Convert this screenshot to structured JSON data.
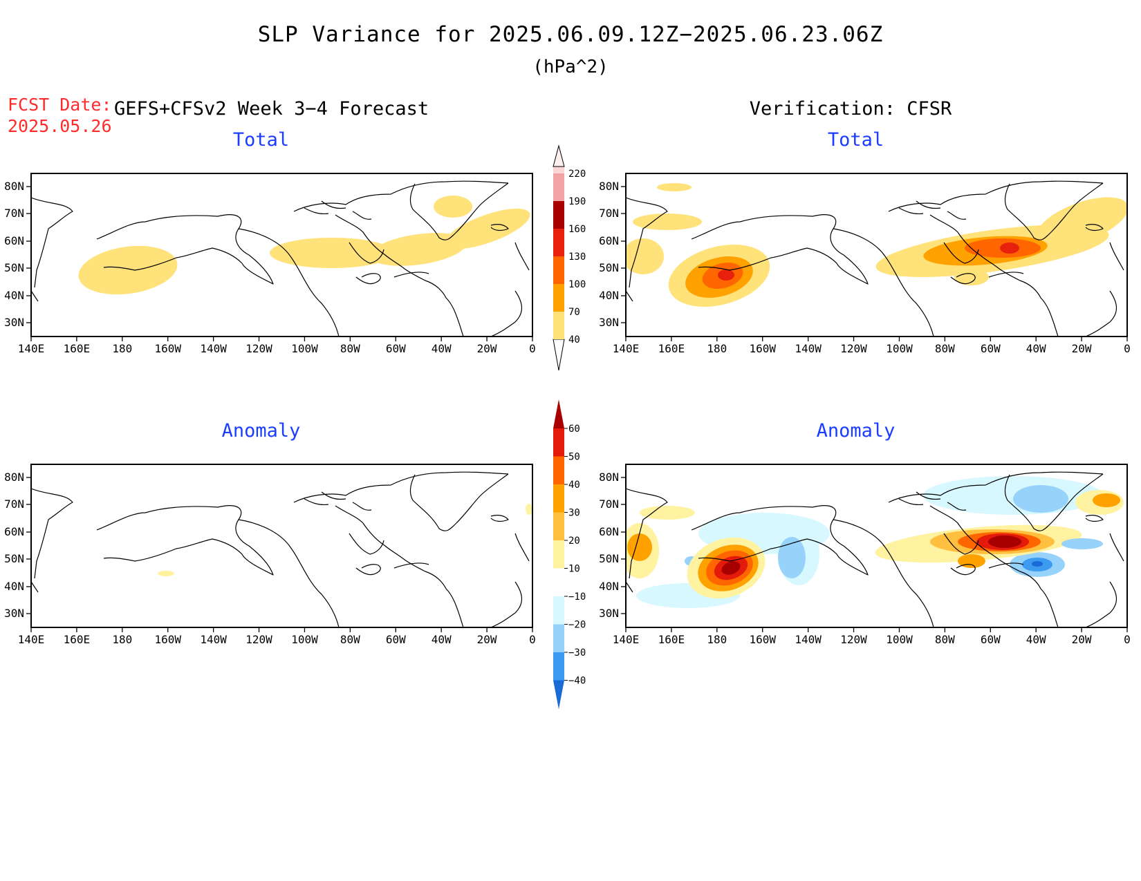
{
  "title": "SLP Variance for 2025.06.09.12Z−2025.06.23.06Z",
  "units": "(hPa^2)",
  "fcst_label": "FCST Date:",
  "fcst_date": "2025.05.26",
  "left_header": "GEFS+CFSv2 Week 3−4 Forecast",
  "right_header": "Verification: CFSR",
  "panel_titles": {
    "total": "Total",
    "anomaly": "Anomaly"
  },
  "lat_ticks": [
    "80N",
    "70N",
    "60N",
    "50N",
    "40N",
    "30N"
  ],
  "lon_ticks": [
    "140E",
    "160E",
    "180",
    "160W",
    "140W",
    "120W",
    "100W",
    "80W",
    "60W",
    "40W",
    "20W",
    "0"
  ],
  "colorbar_total": {
    "levels": [
      "40",
      "70",
      "100",
      "130",
      "160",
      "190",
      "220"
    ],
    "colors": [
      "#ffe27a",
      "#ffa200",
      "#ff6600",
      "#e8200e",
      "#a80000",
      "#f3a3a3",
      "#fbd6d6",
      "#fff0f0"
    ]
  },
  "colorbar_anomaly": {
    "levels": [
      "60",
      "50",
      "40",
      "30",
      "20",
      "10",
      "−10",
      "−20",
      "−30",
      "−40"
    ],
    "colors": [
      "#a80000",
      "#e41a0b",
      "#ff6600",
      "#ffa200",
      "#ffc040",
      "#fff2a0",
      "#ffffff",
      "#d8f8ff",
      "#96d2fa",
      "#3c9bf0",
      "#1a6ad8"
    ]
  }
}
